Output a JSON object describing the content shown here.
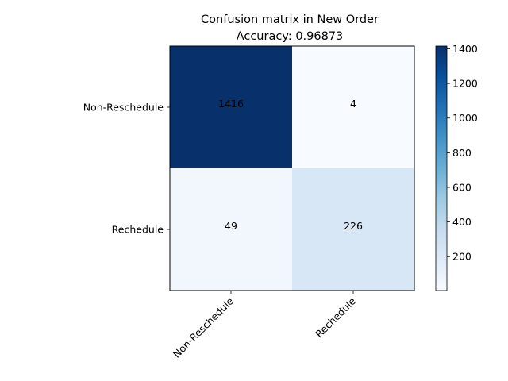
{
  "chart_data": {
    "type": "heatmap",
    "title": "Confusion matrix in New Order",
    "subtitle": "Accuracy: 0.96873",
    "row_labels": [
      "Non-Reschedule",
      "Rechedule"
    ],
    "col_labels": [
      "Non-Reschedule",
      "Rechedule"
    ],
    "values": [
      [
        1416,
        4
      ],
      [
        49,
        226
      ]
    ],
    "colormap": "Blues",
    "colorbar": {
      "min": 4,
      "max": 1416,
      "ticks": [
        200,
        400,
        600,
        800,
        1000,
        1200,
        1400
      ]
    },
    "grid": false
  }
}
